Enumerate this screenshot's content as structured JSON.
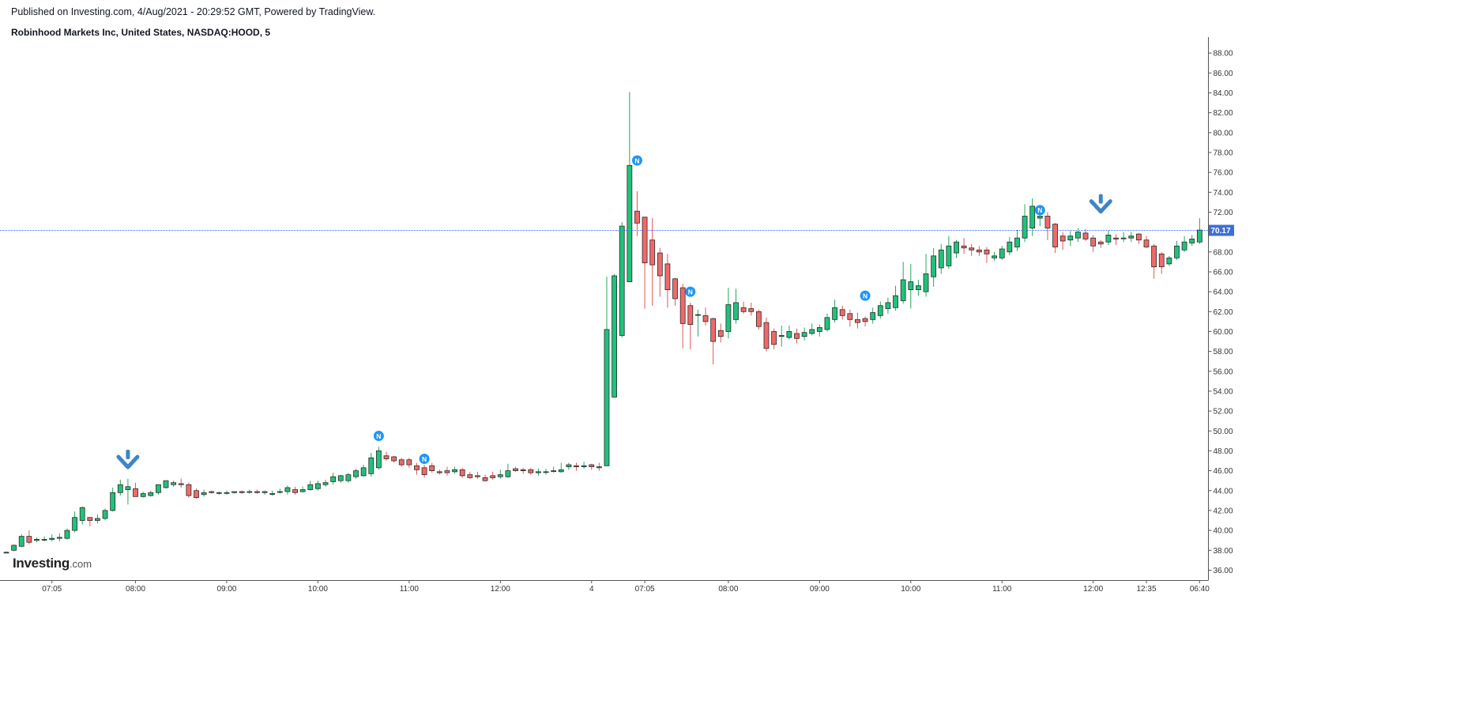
{
  "header": {
    "published": "Published on Investing.com, 4/Aug/2021 - 20:29:52 GMT, Powered by TradingView.",
    "symbol": "Robinhood Markets Inc, United States, NASDAQ:HOOD, 5"
  },
  "logo": {
    "main": "Investing",
    "suffix": ".com"
  },
  "colors": {
    "up": "#26a65b",
    "up_fill": "#1fc27a",
    "down": "#e25555",
    "down_fill": "#ef6a6a",
    "news": "#2196f3",
    "arrow": "#3d85c6",
    "price_line": "#2962ff"
  },
  "chart_data": {
    "type": "candlestick",
    "ylim": [
      35,
      89.6
    ],
    "y_ticks": [
      "36.00",
      "38.00",
      "40.00",
      "42.00",
      "44.00",
      "46.00",
      "48.00",
      "50.00",
      "52.00",
      "54.00",
      "56.00",
      "58.00",
      "60.00",
      "62.00",
      "64.00",
      "66.00",
      "68.00",
      "70.00",
      "72.00",
      "74.00",
      "76.00",
      "78.00",
      "80.00",
      "82.00",
      "84.00",
      "86.00",
      "88.00"
    ],
    "x_ticks": [
      {
        "label": "07:05",
        "index": 6
      },
      {
        "label": "08:00",
        "index": 17
      },
      {
        "label": "09:00",
        "index": 29
      },
      {
        "label": "10:00",
        "index": 41
      },
      {
        "label": "11:00",
        "index": 53
      },
      {
        "label": "12:00",
        "index": 65
      },
      {
        "label": "4",
        "index": 77
      },
      {
        "label": "07:05",
        "index": 84
      },
      {
        "label": "08:00",
        "index": 95
      },
      {
        "label": "09:00",
        "index": 107
      },
      {
        "label": "10:00",
        "index": 119
      },
      {
        "label": "11:00",
        "index": 131
      },
      {
        "label": "12:00",
        "index": 143
      },
      {
        "label": "12:35",
        "index": 150
      },
      {
        "label": "06:40",
        "index": 157
      }
    ],
    "last_price": 70.17,
    "last_price_label": "70.17",
    "candles": [
      [
        37.8,
        37.9,
        37.7,
        37.8
      ],
      [
        38.0,
        38.6,
        37.9,
        38.5
      ],
      [
        38.4,
        39.6,
        38.3,
        39.4
      ],
      [
        39.4,
        40.0,
        38.6,
        38.8
      ],
      [
        39.0,
        39.3,
        38.8,
        39.1
      ],
      [
        39.1,
        39.4,
        38.9,
        39.1
      ],
      [
        39.1,
        39.6,
        38.9,
        39.2
      ],
      [
        39.2,
        39.7,
        38.9,
        39.3
      ],
      [
        39.2,
        40.2,
        39.1,
        40.0
      ],
      [
        40.0,
        41.9,
        39.8,
        41.3
      ],
      [
        41.0,
        42.4,
        40.6,
        42.3
      ],
      [
        41.3,
        41.2,
        40.4,
        41.0
      ],
      [
        41.0,
        41.6,
        40.7,
        41.2
      ],
      [
        41.2,
        42.2,
        41.0,
        42.0
      ],
      [
        42.0,
        44.3,
        41.9,
        43.8
      ],
      [
        43.8,
        45.1,
        43.5,
        44.6
      ],
      [
        44.1,
        45.2,
        42.6,
        44.4
      ],
      [
        44.2,
        44.8,
        43.9,
        43.4
      ],
      [
        43.4,
        43.9,
        43.3,
        43.7
      ],
      [
        43.5,
        44.0,
        43.4,
        43.8
      ],
      [
        43.8,
        44.6,
        43.6,
        44.6
      ],
      [
        44.3,
        45.0,
        44.2,
        45.0
      ],
      [
        44.6,
        45.0,
        44.4,
        44.8
      ],
      [
        44.7,
        45.2,
        44.3,
        44.6
      ],
      [
        44.6,
        44.8,
        43.3,
        43.5
      ],
      [
        44.0,
        44.2,
        43.2,
        43.3
      ],
      [
        43.6,
        44.1,
        43.4,
        43.8
      ],
      [
        43.9,
        44.0,
        43.7,
        43.8
      ],
      [
        43.8,
        43.9,
        43.6,
        43.8
      ],
      [
        43.8,
        44.0,
        43.6,
        43.8
      ],
      [
        43.8,
        43.9,
        43.7,
        43.9
      ],
      [
        43.9,
        44.0,
        43.7,
        43.8
      ],
      [
        43.9,
        44.1,
        43.7,
        43.9
      ],
      [
        43.9,
        44.1,
        43.7,
        43.8
      ],
      [
        43.8,
        44.0,
        43.6,
        43.9
      ],
      [
        43.7,
        44.0,
        43.5,
        43.7
      ],
      [
        43.9,
        44.2,
        43.7,
        43.9
      ],
      [
        43.9,
        44.5,
        43.6,
        44.3
      ],
      [
        44.1,
        44.4,
        43.6,
        43.8
      ],
      [
        43.9,
        44.4,
        43.8,
        44.1
      ],
      [
        44.1,
        45.0,
        44.0,
        44.6
      ],
      [
        44.2,
        45.0,
        44.0,
        44.7
      ],
      [
        44.6,
        45.1,
        44.4,
        44.8
      ],
      [
        44.9,
        45.8,
        44.6,
        45.4
      ],
      [
        45.0,
        45.6,
        44.8,
        45.5
      ],
      [
        45.0,
        45.8,
        44.8,
        45.6
      ],
      [
        45.4,
        46.2,
        45.2,
        46.0
      ],
      [
        45.5,
        46.6,
        45.4,
        46.3
      ],
      [
        45.7,
        47.8,
        45.4,
        47.3
      ],
      [
        46.3,
        48.4,
        46.1,
        48.0
      ],
      [
        47.5,
        47.9,
        47.0,
        47.2
      ],
      [
        47.4,
        47.5,
        46.8,
        47.0
      ],
      [
        47.1,
        47.3,
        46.4,
        46.6
      ],
      [
        47.1,
        47.3,
        46.3,
        46.6
      ],
      [
        46.5,
        46.8,
        45.6,
        46.1
      ],
      [
        46.3,
        46.6,
        45.3,
        45.6
      ],
      [
        46.5,
        46.8,
        45.8,
        46.0
      ],
      [
        45.9,
        46.1,
        45.6,
        45.8
      ],
      [
        46.0,
        46.4,
        45.5,
        45.8
      ],
      [
        45.9,
        46.4,
        45.7,
        46.1
      ],
      [
        46.1,
        46.3,
        45.3,
        45.5
      ],
      [
        45.6,
        45.9,
        45.2,
        45.3
      ],
      [
        45.5,
        45.9,
        45.2,
        45.4
      ],
      [
        45.3,
        45.6,
        44.9,
        45.0
      ],
      [
        45.5,
        45.9,
        45.1,
        45.3
      ],
      [
        45.4,
        46.1,
        45.2,
        45.6
      ],
      [
        45.4,
        46.7,
        45.3,
        46.0
      ],
      [
        46.2,
        46.4,
        45.9,
        46.0
      ],
      [
        46.1,
        46.3,
        45.7,
        46.0
      ],
      [
        46.1,
        46.3,
        45.6,
        45.8
      ],
      [
        45.8,
        46.2,
        45.5,
        45.9
      ],
      [
        45.9,
        46.2,
        45.6,
        45.9
      ],
      [
        46.0,
        46.4,
        45.8,
        46.0
      ],
      [
        45.9,
        46.8,
        45.8,
        46.1
      ],
      [
        46.4,
        46.8,
        46.1,
        46.6
      ],
      [
        46.5,
        46.8,
        46.0,
        46.4
      ],
      [
        46.4,
        46.9,
        46.2,
        46.5
      ],
      [
        46.6,
        46.7,
        46.1,
        46.4
      ],
      [
        46.4,
        46.8,
        46.0,
        46.3
      ],
      [
        46.5,
        65.5,
        46.5,
        60.2
      ],
      [
        53.4,
        65.8,
        53.4,
        65.6
      ],
      [
        59.6,
        71.0,
        59.4,
        70.6
      ],
      [
        65.0,
        84.1,
        65.0,
        76.7
      ],
      [
        72.1,
        74.1,
        69.6,
        70.9
      ],
      [
        71.5,
        71.4,
        62.3,
        66.9
      ],
      [
        69.2,
        71.4,
        62.6,
        66.7
      ],
      [
        67.9,
        68.4,
        63.5,
        65.6
      ],
      [
        66.8,
        67.8,
        62.4,
        64.2
      ],
      [
        65.3,
        65.4,
        62.6,
        63.3
      ],
      [
        64.4,
        64.8,
        58.3,
        60.8
      ],
      [
        62.6,
        62.9,
        58.2,
        60.7
      ],
      [
        61.7,
        62.2,
        59.5,
        61.7
      ],
      [
        61.6,
        62.4,
        60.6,
        61.0
      ],
      [
        61.3,
        61.4,
        56.7,
        59.0
      ],
      [
        60.1,
        60.8,
        58.9,
        59.5
      ],
      [
        60.0,
        64.4,
        59.3,
        62.7
      ],
      [
        61.2,
        64.3,
        60.8,
        62.9
      ],
      [
        62.4,
        63.0,
        61.8,
        62.0
      ],
      [
        62.3,
        62.9,
        61.6,
        62.0
      ],
      [
        62.0,
        62.2,
        60.2,
        60.5
      ],
      [
        60.9,
        61.4,
        58.0,
        58.3
      ],
      [
        60.0,
        60.3,
        58.2,
        58.7
      ],
      [
        59.5,
        60.6,
        58.5,
        59.6
      ],
      [
        59.4,
        60.6,
        59.2,
        60.0
      ],
      [
        59.8,
        60.3,
        58.8,
        59.3
      ],
      [
        59.5,
        60.4,
        59.1,
        59.9
      ],
      [
        59.8,
        60.8,
        59.6,
        60.2
      ],
      [
        60.0,
        60.7,
        59.5,
        60.4
      ],
      [
        60.2,
        61.8,
        60.0,
        61.4
      ],
      [
        61.2,
        63.2,
        60.9,
        62.4
      ],
      [
        62.2,
        62.6,
        61.2,
        61.6
      ],
      [
        61.8,
        62.2,
        60.5,
        61.2
      ],
      [
        61.2,
        61.9,
        60.3,
        60.9
      ],
      [
        61.3,
        61.5,
        60.5,
        61.0
      ],
      [
        61.2,
        62.4,
        60.8,
        61.9
      ],
      [
        61.6,
        63.0,
        61.3,
        62.6
      ],
      [
        62.3,
        63.4,
        61.8,
        62.9
      ],
      [
        62.4,
        64.6,
        62.1,
        63.6
      ],
      [
        63.1,
        67.0,
        62.8,
        65.2
      ],
      [
        64.2,
        66.8,
        62.3,
        65.0
      ],
      [
        64.2,
        65.2,
        63.6,
        64.6
      ],
      [
        64.0,
        67.8,
        63.5,
        65.8
      ],
      [
        65.5,
        68.4,
        64.5,
        67.6
      ],
      [
        66.4,
        68.8,
        65.8,
        68.2
      ],
      [
        66.6,
        69.6,
        66.3,
        68.6
      ],
      [
        67.9,
        69.2,
        67.4,
        69.0
      ],
      [
        68.6,
        69.4,
        67.8,
        68.4
      ],
      [
        68.4,
        68.8,
        67.6,
        68.2
      ],
      [
        68.2,
        68.6,
        67.6,
        68.0
      ],
      [
        68.2,
        68.5,
        66.9,
        67.8
      ],
      [
        67.4,
        68.0,
        67.1,
        67.6
      ],
      [
        67.4,
        68.6,
        67.2,
        68.3
      ],
      [
        68.0,
        69.5,
        67.7,
        69.0
      ],
      [
        68.5,
        70.2,
        68.1,
        69.4
      ],
      [
        69.4,
        72.8,
        69.0,
        71.6
      ],
      [
        70.4,
        73.4,
        69.6,
        72.6
      ],
      [
        71.4,
        71.8,
        70.6,
        71.6
      ],
      [
        71.6,
        72.0,
        69.2,
        70.4
      ],
      [
        70.8,
        70.9,
        67.9,
        68.5
      ],
      [
        69.6,
        70.0,
        68.2,
        69.1
      ],
      [
        69.2,
        70.1,
        68.6,
        69.6
      ],
      [
        69.4,
        70.4,
        69.0,
        70.0
      ],
      [
        69.9,
        70.3,
        69.1,
        69.3
      ],
      [
        69.4,
        69.7,
        68.0,
        68.6
      ],
      [
        69.0,
        69.2,
        68.4,
        68.8
      ],
      [
        69.0,
        70.2,
        68.7,
        69.7
      ],
      [
        69.4,
        69.8,
        68.7,
        69.3
      ],
      [
        69.4,
        70.0,
        69.0,
        69.4
      ],
      [
        69.4,
        70.0,
        69.0,
        69.6
      ],
      [
        69.8,
        69.9,
        68.8,
        69.2
      ],
      [
        69.2,
        69.6,
        68.4,
        68.5
      ],
      [
        68.6,
        68.8,
        65.3,
        66.5
      ],
      [
        67.8,
        68.0,
        65.8,
        66.5
      ],
      [
        66.8,
        67.6,
        66.6,
        67.4
      ],
      [
        67.4,
        69.1,
        67.2,
        68.6
      ],
      [
        68.2,
        69.6,
        68.0,
        69.0
      ],
      [
        68.9,
        69.7,
        68.6,
        69.3
      ],
      [
        69.0,
        71.4,
        68.8,
        70.2
      ]
    ],
    "annotations": {
      "news": [
        {
          "index": 49,
          "price": 49.5,
          "label": "N"
        },
        {
          "index": 55,
          "price": 47.2,
          "label": "N"
        },
        {
          "index": 83,
          "price": 77.2,
          "label": "N"
        },
        {
          "index": 90,
          "price": 64.0,
          "label": "N"
        },
        {
          "index": 113,
          "price": 63.6,
          "label": "N"
        },
        {
          "index": 136,
          "price": 72.2,
          "label": "N"
        }
      ],
      "arrows": [
        {
          "index": 16,
          "price": 47.0
        },
        {
          "index": 144,
          "price": 72.7
        }
      ]
    }
  }
}
